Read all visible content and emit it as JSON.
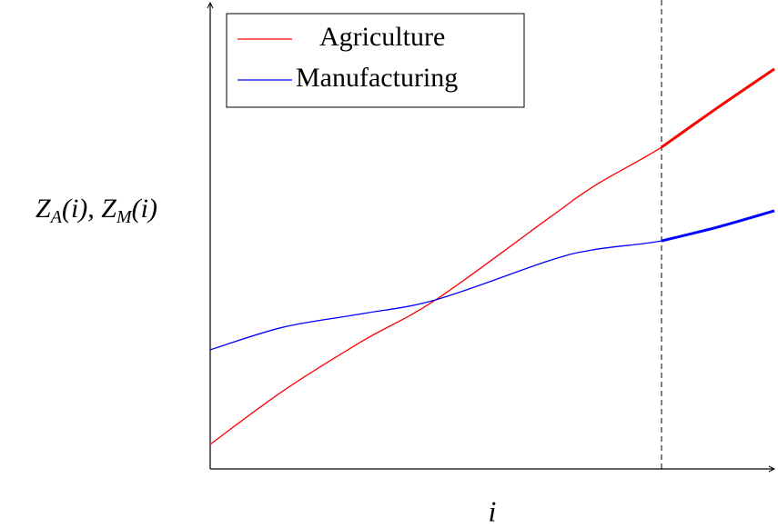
{
  "chart_data": {
    "type": "line",
    "xlabel": "i",
    "ylabel": "Z_A(i), Z_M(i)",
    "x": [
      0,
      1.3,
      2.7,
      4,
      6,
      6.8,
      8,
      9,
      10
    ],
    "series": [
      {
        "name": "Agriculture",
        "color": "#ff0000",
        "values": [
          0.53,
          1.69,
          2.76,
          3.65,
          5.41,
          6.1,
          6.94,
          7.8,
          8.63
        ]
      },
      {
        "name": "Manufacturing",
        "color": "#0000ff",
        "values": [
          2.57,
          3.06,
          3.35,
          3.65,
          4.49,
          4.73,
          4.92,
          5.22,
          5.57
        ]
      }
    ],
    "xlim": [
      0,
      10
    ],
    "ylim": [
      0,
      10
    ],
    "vline": 8,
    "legend": "upper left",
    "grid": false
  }
}
